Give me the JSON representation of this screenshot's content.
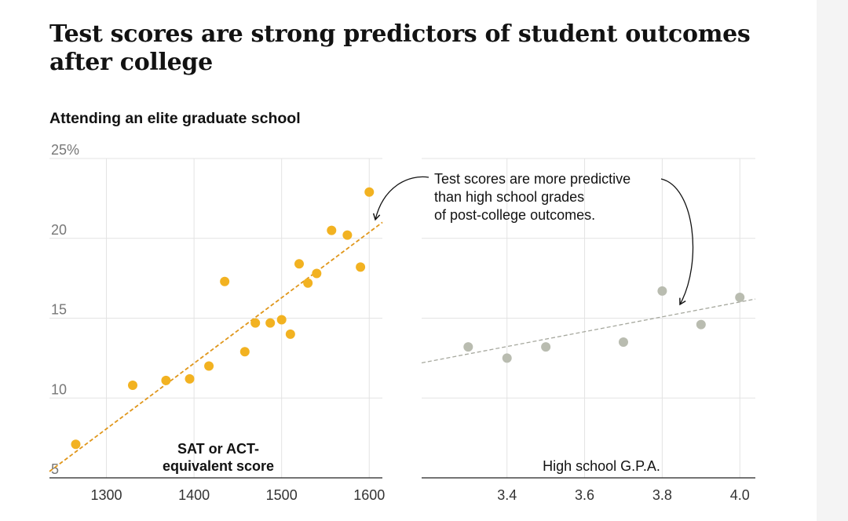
{
  "headline": "Test scores are strong predictors of student outcomes after college",
  "subtitle": "Attending an elite graduate school",
  "annotation": [
    "Test scores are more predictive",
    "than high school grades",
    "of post-college outcomes."
  ],
  "colors": {
    "sat_points": "#f2b221",
    "sat_trend": "#e0961a",
    "gpa_points": "#b9bcb0",
    "gpa_trend": "#a6a89e",
    "grid": "#e3e3e3",
    "axis": "#222222"
  },
  "chart_data": [
    {
      "type": "scatter",
      "xlabel": [
        "SAT or ACT-",
        "equivalent score"
      ],
      "ylabel": "",
      "xlim": [
        1235,
        1615
      ],
      "ylim": [
        5,
        25
      ],
      "xticks": [
        1300,
        1400,
        1500,
        1600
      ],
      "xtick_labels": [
        "1300",
        "1400",
        "1500",
        "1600"
      ],
      "yticks": [
        5,
        10,
        15,
        20,
        25
      ],
      "ytick_labels": [
        "5",
        "10",
        "15",
        "20",
        "25%"
      ],
      "points": [
        {
          "x": 1265,
          "y": 7.1
        },
        {
          "x": 1330,
          "y": 10.8
        },
        {
          "x": 1368,
          "y": 11.1
        },
        {
          "x": 1395,
          "y": 11.2
        },
        {
          "x": 1417,
          "y": 12.0
        },
        {
          "x": 1435,
          "y": 17.3
        },
        {
          "x": 1458,
          "y": 12.9
        },
        {
          "x": 1470,
          "y": 14.7
        },
        {
          "x": 1487,
          "y": 14.7
        },
        {
          "x": 1500,
          "y": 14.9
        },
        {
          "x": 1510,
          "y": 14.0
        },
        {
          "x": 1520,
          "y": 18.4
        },
        {
          "x": 1530,
          "y": 17.2
        },
        {
          "x": 1540,
          "y": 17.8
        },
        {
          "x": 1557,
          "y": 20.5
        },
        {
          "x": 1575,
          "y": 20.2
        },
        {
          "x": 1590,
          "y": 18.2
        },
        {
          "x": 1600,
          "y": 22.9
        }
      ],
      "trendline": [
        {
          "x": 1235,
          "y": 5.4
        },
        {
          "x": 1615,
          "y": 21.0
        }
      ]
    },
    {
      "type": "scatter",
      "xlabel": [
        "High school G.P.A."
      ],
      "ylabel": "",
      "xlim": [
        3.18,
        4.04
      ],
      "ylim": [
        5,
        25
      ],
      "xticks": [
        3.4,
        3.6,
        3.8,
        4.0
      ],
      "xtick_labels": [
        "3.4",
        "3.6",
        "3.8",
        "4.0"
      ],
      "yticks": [
        5,
        10,
        15,
        20,
        25
      ],
      "points": [
        {
          "x": 3.3,
          "y": 13.2
        },
        {
          "x": 3.4,
          "y": 12.5
        },
        {
          "x": 3.5,
          "y": 13.2
        },
        {
          "x": 3.7,
          "y": 13.5
        },
        {
          "x": 3.8,
          "y": 16.7
        },
        {
          "x": 3.9,
          "y": 14.6
        },
        {
          "x": 4.0,
          "y": 16.3
        }
      ],
      "trendline": [
        {
          "x": 3.18,
          "y": 12.2
        },
        {
          "x": 4.04,
          "y": 16.2
        }
      ]
    }
  ]
}
